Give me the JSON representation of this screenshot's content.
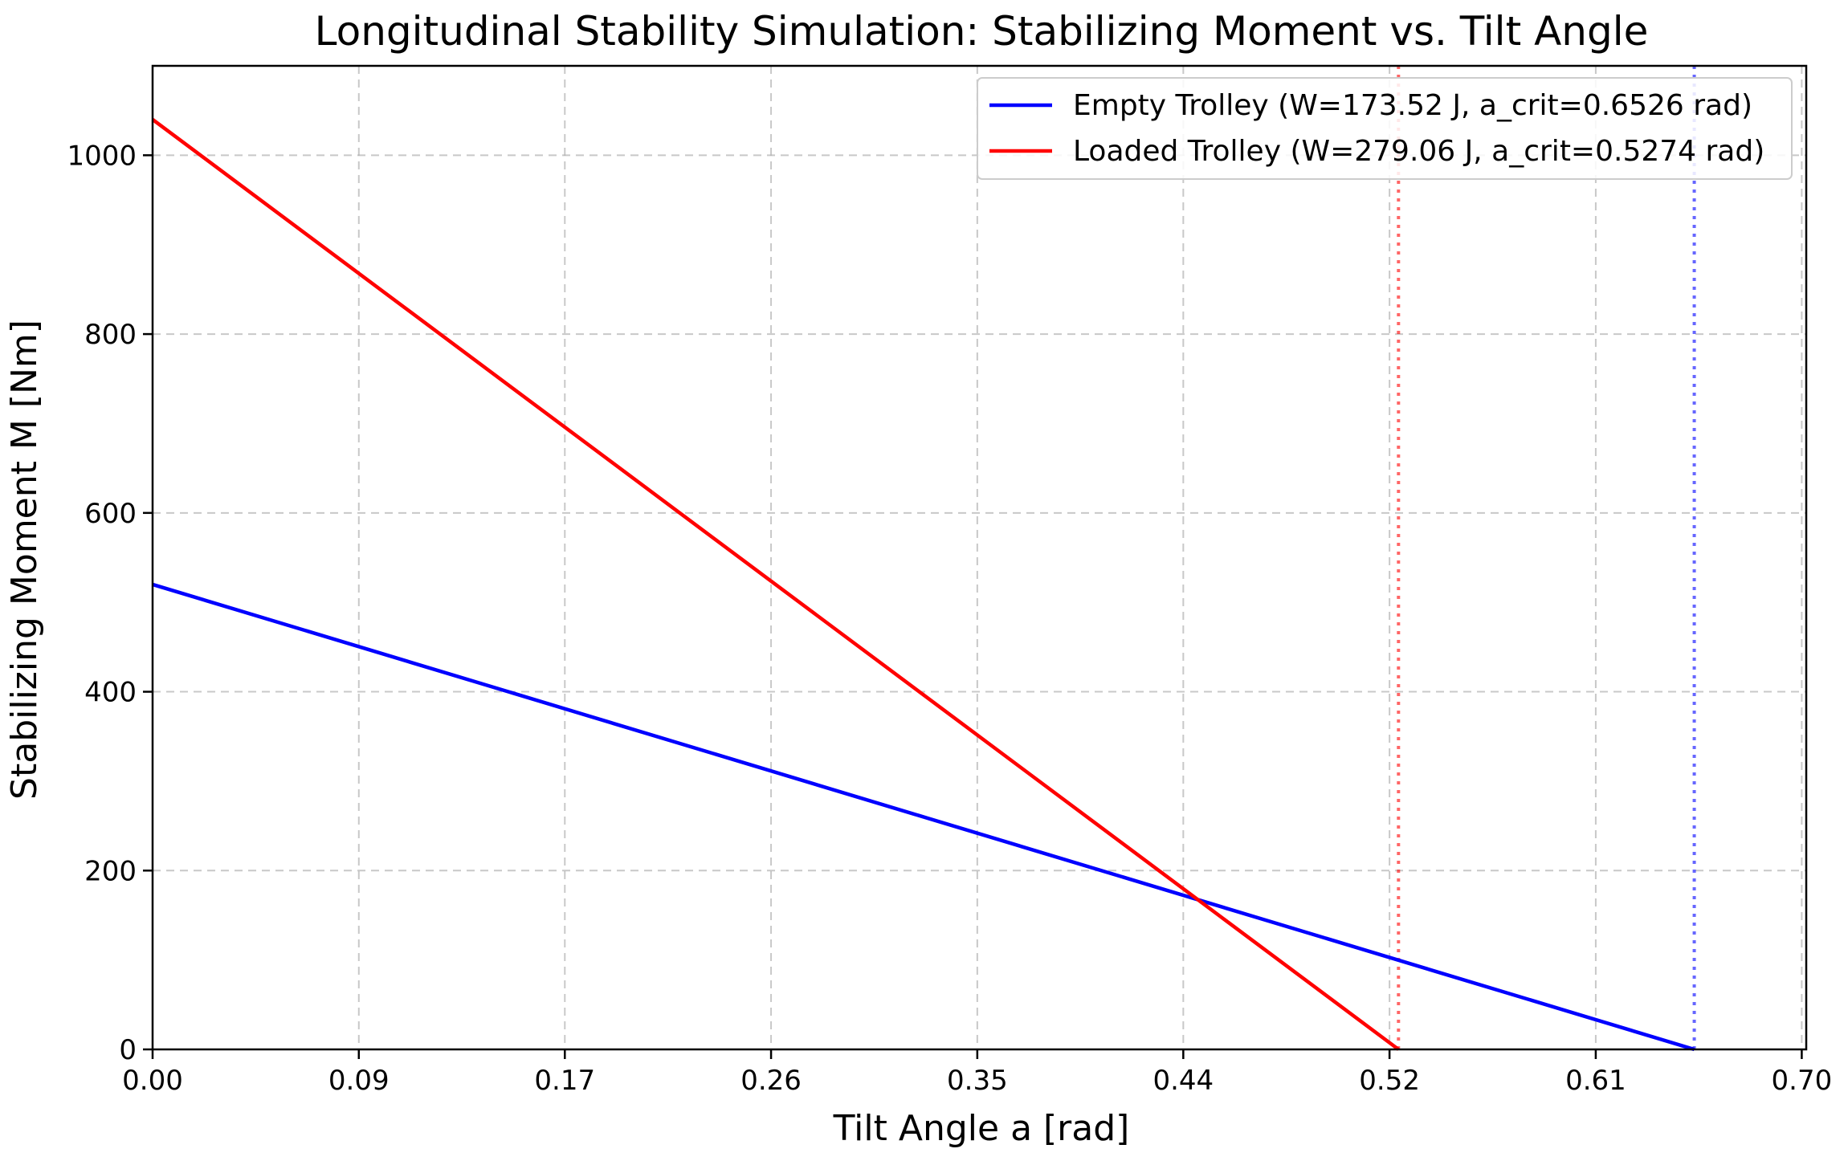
{
  "chart_data": {
    "type": "line",
    "title": "Longitudinal Stability Simulation: Stabilizing Moment vs. Tilt Angle",
    "xlabel": "Tilt Angle a [rad]",
    "ylabel": "Stabilizing Moment M [Nm]",
    "xlim": [
      0,
      0.7
    ],
    "ylim": [
      0,
      1100
    ],
    "xticks": [
      0.0,
      0.0873,
      0.1745,
      0.2618,
      0.3491,
      0.4363,
      0.5236,
      0.6109,
      0.6981
    ],
    "xtick_labels": [
      "0.00",
      "0.09",
      "0.17",
      "0.26",
      "0.35",
      "0.44",
      "0.52",
      "0.61",
      "0.70"
    ],
    "yticks": [
      0,
      200,
      400,
      600,
      800,
      1000
    ],
    "ytick_labels": [
      "0",
      "200",
      "400",
      "600",
      "800",
      "1000"
    ],
    "grid": true,
    "legend_position": "top-right",
    "series": [
      {
        "name": "Empty Trolley (W=173.52 J, a_crit=0.6526 rad)",
        "color": "#0000ff",
        "x": [
          0.0,
          0.6526
        ],
        "y": [
          520,
          0
        ]
      },
      {
        "name": "Loaded Trolley (W=279.06 J, a_crit=0.5274 rad)",
        "color": "#ff0000",
        "x": [
          0.0,
          0.5274
        ],
        "y": [
          1040,
          0
        ]
      }
    ],
    "vlines": [
      {
        "x": 0.6526,
        "color": "#0000ff",
        "style": "dotted",
        "opacity": 0.6
      },
      {
        "x": 0.5274,
        "color": "#ff0000",
        "style": "dotted",
        "opacity": 0.6
      }
    ]
  }
}
